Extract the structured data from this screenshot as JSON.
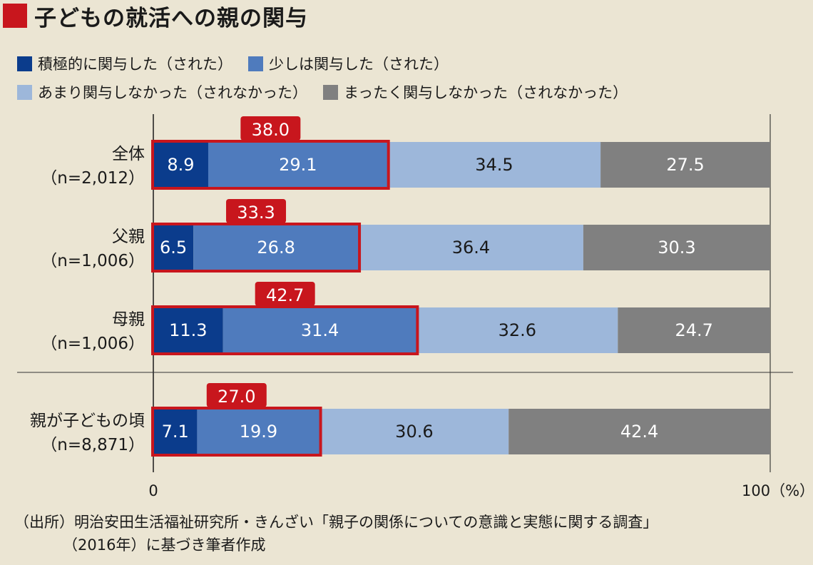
{
  "title": "子どもの就活への親の関与",
  "colors": {
    "accent": "#c8161d",
    "series": [
      "#0b3c8c",
      "#4f7bbd",
      "#9db7da",
      "#808080"
    ],
    "label_dark": "#1a1a1a",
    "label_light": "#ffffff"
  },
  "legend": [
    {
      "label": "積極的に関与した（された）",
      "row": 1
    },
    {
      "label": "少しは関与した（された）",
      "row": 1
    },
    {
      "label": "あまり関与しなかった（されなかった）",
      "row": 2
    },
    {
      "label": "まったく関与しなかった（されなかった）",
      "row": 2
    }
  ],
  "chart_data": {
    "type": "bar",
    "orientation": "horizontal",
    "stacked": true,
    "categories": [
      {
        "name": "全体",
        "n": "（n=2,012）"
      },
      {
        "name": "父親",
        "n": "（n=1,006）"
      },
      {
        "name": "母親",
        "n": "（n=1,006）"
      },
      {
        "name": "親が子どもの頃",
        "n": "（n=8,871）"
      }
    ],
    "series": [
      {
        "name": "積極的に関与した（された）",
        "values": [
          8.9,
          6.5,
          11.3,
          7.1
        ],
        "labels": [
          "8.9",
          "6.5",
          "11.3",
          "7.1"
        ]
      },
      {
        "name": "少しは関与した（された）",
        "values": [
          29.1,
          26.8,
          31.4,
          19.9
        ],
        "labels": [
          "29.1",
          "26.8",
          "31.4",
          "19.9"
        ]
      },
      {
        "name": "あまり関与しなかった（されなかった）",
        "values": [
          34.5,
          36.4,
          32.6,
          30.6
        ],
        "labels": [
          "34.5",
          "36.4",
          "32.6",
          "30.6"
        ]
      },
      {
        "name": "まったく関与しなかった（されなかった）",
        "values": [
          27.5,
          30.3,
          24.7,
          42.4
        ],
        "labels": [
          "27.5",
          "30.3",
          "24.7",
          "42.4"
        ]
      }
    ],
    "highlight_totals": [
      38.0,
      33.3,
      42.7,
      27.0
    ],
    "highlight_labels": [
      "38.0",
      "33.3",
      "42.7",
      "27.0"
    ],
    "xlim": [
      0,
      100
    ],
    "tick_labels": [
      "0",
      "100（%）"
    ],
    "grid": false
  },
  "source": {
    "line1": "（出所）明治安田生活福祉研究所・きんざい「親子の関係についての意識と実態に関する調査」",
    "line2": "（2016年）に基づき筆者作成"
  }
}
